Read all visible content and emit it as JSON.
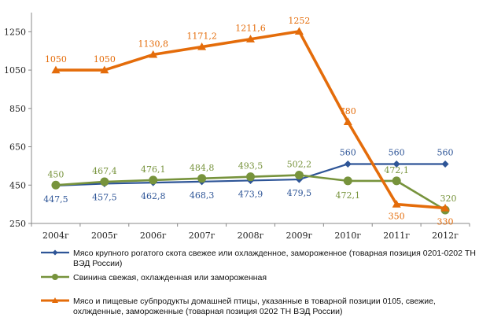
{
  "chart_data": {
    "type": "line",
    "categories": [
      "2004г",
      "2005г",
      "2006г",
      "2007г",
      "2008г",
      "2009г",
      "2010г",
      "2011г",
      "2012г"
    ],
    "ylim": [
      250,
      1350
    ],
    "yticks": [
      250,
      450,
      650,
      850,
      1050,
      1250
    ],
    "ytick_labels": [
      "250",
      "450",
      "650",
      "850",
      "1050",
      "1250"
    ],
    "grid": false,
    "legend_position": "bottom",
    "series": [
      {
        "name": "Мясо крупного рогатого скота свежее или охлажденное, замороженное (товарная позиция 0201-0202 ТН ВЭД России)",
        "legend_lines": [
          "Мясо крупного рогатого скота свежее или охлажденное, замороженное (товарная позиция 0201-0202 ТН",
          "ВЭД России)"
        ],
        "color": "#2e5597",
        "marker": "diamond",
        "values": [
          447.5,
          457.5,
          462.8,
          468.3,
          473.9,
          479.5,
          560,
          560,
          560
        ],
        "labels": [
          "447,5",
          "457,5",
          "462,8",
          "468,3",
          "473,9",
          "479,5",
          "560",
          "560",
          "560"
        ]
      },
      {
        "name": "Свинина свежая, охлажденная или замороженная",
        "legend_lines": [
          "Свинина свежая, охлажденная или замороженная"
        ],
        "color": "#77933c",
        "marker": "circle",
        "values": [
          450,
          467.4,
          476.1,
          484.8,
          493.5,
          502.2,
          472.1,
          472.1,
          320
        ],
        "labels": [
          "450",
          "467,4",
          "476,1",
          "484,8",
          "493,5",
          "502,2",
          "472,1",
          "472,1",
          "320"
        ]
      },
      {
        "name": "Мясо и пищевые субпродукты домашней птицы, указанные в товарной позиции 0105, свежие, охлажденные, замороженные (товарная позиция 0202 ТН ВЭД России)",
        "legend_lines": [
          "Мясо и пищевые субпродукты домашней птицы, указанные в товарной позиции 0105, свежие,",
          "охлжденные, замороженные (товарная позиция 0202 ТН ВЭД России)"
        ],
        "color": "#e46c0a",
        "marker": "triangle",
        "values": [
          1050,
          1050,
          1130.8,
          1171.2,
          1211.6,
          1252,
          780,
          350,
          330
        ],
        "labels": [
          "1050",
          "1050",
          "1130,8",
          "1171,2",
          "1211,6",
          "1252",
          "780",
          "350",
          "330"
        ]
      }
    ]
  }
}
